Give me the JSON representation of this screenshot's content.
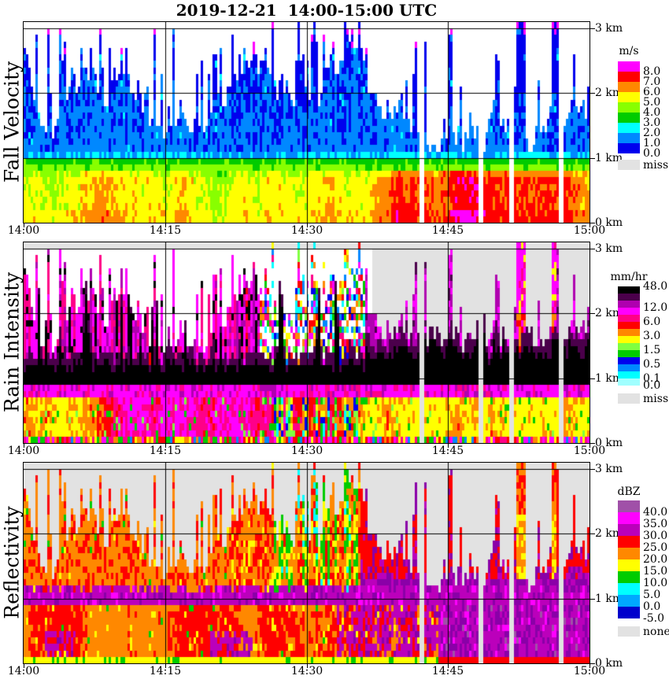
{
  "chart_data": {
    "type": "heatmap",
    "title": "2019-12-21  14:00-15:00 UTC",
    "time": {
      "start": "14:00",
      "end": "15:00",
      "ticks": [
        {
          "label": "14:00",
          "min": 0
        },
        {
          "label": "14:15",
          "min": 15
        },
        {
          "label": "14:30",
          "min": 30
        },
        {
          "label": "14:45",
          "min": 45
        },
        {
          "label": "15:00",
          "min": 60
        }
      ],
      "gridline_minutes": [
        15,
        30,
        45
      ]
    },
    "height_km": {
      "min": 0,
      "max": 3.1,
      "gridlines_km": [
        3,
        2,
        1,
        0
      ],
      "tick_labels": [
        "3 km",
        "2 km",
        "1 km",
        "0 km"
      ]
    },
    "background": {
      "no_echo": "#FFFFFF",
      "missing": "#E2E2E2"
    },
    "extra_colors": {
      "violet": "#8A00A8"
    },
    "missing_profiles_min": [
      42.1,
      48.3,
      51.5,
      56.8
    ],
    "panels": [
      {
        "id": "fall_velocity",
        "axis_label": "Fall Velocity",
        "units": "m/s",
        "colorbar": {
          "title": "m/s",
          "cells": [
            {
              "color": "#FF00FF"
            },
            {
              "color": "#FF0000"
            },
            {
              "color": "#FF8800"
            },
            {
              "color": "#FFFF00"
            },
            {
              "color": "#88FF00"
            },
            {
              "color": "#00CC00"
            },
            {
              "color": "#00FFFF"
            },
            {
              "color": "#0088FF"
            },
            {
              "color": "#0000EE"
            }
          ],
          "labels": [
            {
              "text": "8.0",
              "boundary": 1
            },
            {
              "text": "7.0",
              "boundary": 2
            },
            {
              "text": "6.0",
              "boundary": 3
            },
            {
              "text": "5.0",
              "boundary": 4
            },
            {
              "text": "4.0",
              "boundary": 5
            },
            {
              "text": "3.0",
              "boundary": 6
            },
            {
              "text": "2.0",
              "boundary": 7
            },
            {
              "text": "1.0",
              "boundary": 8
            },
            {
              "text": "0.0",
              "boundary": 9
            }
          ],
          "extra": {
            "color": "#E2E2E2",
            "label": "miss"
          }
        },
        "features": {
          "rain_layer": "4-8 m/s below ~1 km, faster (orange/red) after 14:30",
          "melting_layer_km": 1.0,
          "snow_layer": "0-2 m/s above 1.1 km, spiky echo tops 1.3-3.1 km",
          "aliasing_specks": "magenta near 3 km tops"
        }
      },
      {
        "id": "rain_intensity",
        "axis_label": "Rain Intensity",
        "units": "mm/hr",
        "colorbar": {
          "title": "mm/hr",
          "cells": [
            {
              "color": "#000000"
            },
            {
              "color": "#4B004B"
            },
            {
              "color": "#B000B0"
            },
            {
              "color": "#FF00FF"
            },
            {
              "color": "#FF0088"
            },
            {
              "color": "#FF0000"
            },
            {
              "color": "#FF8800"
            },
            {
              "color": "#FFFF00"
            },
            {
              "color": "#80FF40"
            },
            {
              "color": "#00CC00"
            },
            {
              "color": "#0000EE"
            },
            {
              "color": "#0088FF"
            },
            {
              "color": "#00FFFF"
            },
            {
              "color": "#A0FFFF"
            }
          ],
          "labels": [
            {
              "text": "48.0",
              "boundary": 0
            },
            {
              "text": "12.0",
              "boundary": 3
            },
            {
              "text": "6.0",
              "boundary": 5
            },
            {
              "text": "3.0",
              "boundary": 7
            },
            {
              "text": "1.5",
              "boundary": 9
            },
            {
              "text": "0.5",
              "boundary": 11
            },
            {
              "text": "0.1",
              "boundary": 13
            },
            {
              "text": "0.0",
              "boundary": 14
            }
          ],
          "extra": {
            "color": "#E2E2E2",
            "label": "miss"
          }
        },
        "features": {
          "black_band_km": [
            0.92,
            1.1
          ],
          "magenta_band_km": [
            0.74,
            0.92
          ],
          "surface_rain": "3-12 mm/hr columns (orange/red/yellow/magenta)",
          "cool_patch": "green/blue/cyan speckle 14:26-14:36",
          "right_side": "missing (gray) background after ~14:37 with magenta/black spikes"
        }
      },
      {
        "id": "reflectivity",
        "axis_label": "Reflectivity",
        "units": "dBZ",
        "colorbar": {
          "title": "dBZ",
          "cells": [
            {
              "color": "#A050A8"
            },
            {
              "color": "#FF00FF"
            },
            {
              "color": "#BB00BB"
            },
            {
              "color": "#FF0000"
            },
            {
              "color": "#FF8800"
            },
            {
              "color": "#FFFF00"
            },
            {
              "color": "#00CC00"
            },
            {
              "color": "#00FFFF"
            },
            {
              "color": "#00A8FF"
            },
            {
              "color": "#0000CC"
            }
          ],
          "labels": [
            {
              "text": "40.0",
              "boundary": 1
            },
            {
              "text": "35.0",
              "boundary": 2
            },
            {
              "text": "30.0",
              "boundary": 3
            },
            {
              "text": "25.0",
              "boundary": 4
            },
            {
              "text": "20.0",
              "boundary": 5
            },
            {
              "text": "15.0",
              "boundary": 6
            },
            {
              "text": "10.0",
              "boundary": 7
            },
            {
              "text": "5.0",
              "boundary": 8
            },
            {
              "text": "0.0",
              "boundary": 9
            },
            {
              "text": "-5.0",
              "boundary": 10
            }
          ],
          "extra": {
            "color": "#E2E2E2",
            "label": "none"
          }
        },
        "features": {
          "bright_band_km": [
            0.92,
            1.15
          ],
          "bright_band": "purple 30-40 dBZ",
          "surface": "25-35 dBZ red/orange left of 14:45, purple 30-40 dBZ after 14:45",
          "aloft": "orange/red spikes on gray missing background, green/cyan patch 14:25-14:35"
        }
      }
    ],
    "render": {
      "seed": 11,
      "columns": 240,
      "rows": 31,
      "row_km": 0.1,
      "melt_km": 1.0,
      "cool_minutes": [
        26,
        35.5
      ],
      "sparse_after_min": 37,
      "tall_spike_minutes": [
        52.6,
        56.15
      ]
    }
  }
}
